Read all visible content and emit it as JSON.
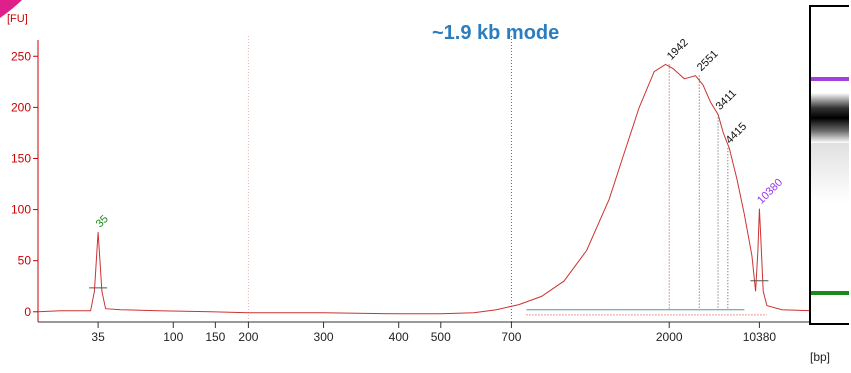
{
  "chart_data": {
    "type": "line",
    "ylabel": "[FU]",
    "xlabel": "[bp]",
    "ylim": [
      -10,
      262
    ],
    "y_ticks": [
      0,
      50,
      100,
      150,
      200,
      250
    ],
    "x_ticks": [
      {
        "label": "35",
        "pos": 0
      },
      {
        "label": "100",
        "pos": 1
      },
      {
        "label": "150",
        "pos": 1.56
      },
      {
        "label": "200",
        "pos": 2
      },
      {
        "label": "300",
        "pos": 3
      },
      {
        "label": "400",
        "pos": 4
      },
      {
        "label": "500",
        "pos": 4.56
      },
      {
        "label": "700",
        "pos": 5.5
      },
      {
        "label": "2000",
        "pos": 7.6
      },
      {
        "label": "10380",
        "pos": 8.8
      }
    ],
    "xlim": [
      -0.8,
      9.5
    ],
    "annotation": "~1.9 kb mode",
    "peak_labels": [
      {
        "label": "35",
        "pos": 0.0,
        "fu": 78,
        "color": "#1a8a1a"
      },
      {
        "label": "1942",
        "pos": 7.6,
        "fu": 242,
        "color": "#111111"
      },
      {
        "label": "2551",
        "pos": 8.0,
        "fu": 231,
        "color": "#111111"
      },
      {
        "label": "3411",
        "pos": 8.25,
        "fu": 193,
        "color": "#111111"
      },
      {
        "label": "4415",
        "pos": 8.38,
        "fu": 160,
        "color": "#111111"
      },
      {
        "label": "10380",
        "pos": 8.8,
        "fu": 101,
        "color": "#9933ee"
      }
    ],
    "series": [
      {
        "color": "#cc3333",
        "x": [
          -0.8,
          -0.5,
          -0.1,
          -0.05,
          0.0,
          0.05,
          0.1,
          0.3,
          0.8,
          1.5,
          2.0,
          3.0,
          4.0,
          4.56,
          5.0,
          5.3,
          5.6,
          5.9,
          6.2,
          6.5,
          6.8,
          7.0,
          7.2,
          7.4,
          7.55,
          7.65,
          7.8,
          7.95,
          8.05,
          8.15,
          8.25,
          8.32,
          8.4,
          8.5,
          8.6,
          8.7,
          8.75,
          8.78,
          8.8,
          8.82,
          8.85,
          8.9,
          9.1,
          9.5
        ],
        "y": [
          0,
          1,
          1,
          20,
          78,
          20,
          3,
          2,
          1,
          0,
          -1,
          -1,
          -2,
          -2,
          -1,
          2,
          7,
          15,
          30,
          60,
          110,
          155,
          200,
          235,
          242,
          238,
          228,
          231,
          222,
          205,
          193,
          175,
          160,
          130,
          95,
          55,
          20,
          60,
          101,
          70,
          20,
          6,
          2,
          1
        ]
      }
    ]
  }
}
